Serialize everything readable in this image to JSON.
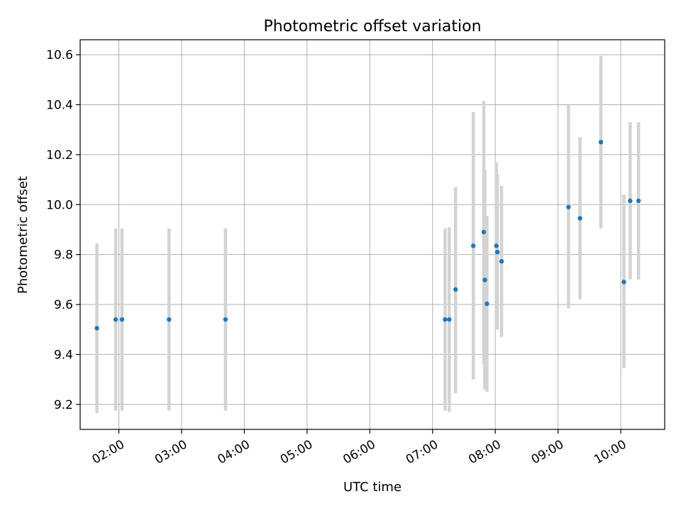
{
  "chart_data": {
    "type": "scatter",
    "title": "Photometric offset variation",
    "xlabel": "UTC time",
    "ylabel": "Photometric offset",
    "x_tick_labels": [
      "02:00",
      "03:00",
      "04:00",
      "05:00",
      "06:00",
      "07:00",
      "08:00",
      "09:00",
      "10:00"
    ],
    "y_tick_labels": [
      "9.2",
      "9.4",
      "9.6",
      "9.8",
      "10.0",
      "10.2",
      "10.4",
      "10.6"
    ],
    "xlim": [
      "01:23",
      "10:42"
    ],
    "ylim": [
      9.1,
      10.66
    ],
    "grid": true,
    "colors": {
      "point": "#1f77b4",
      "errorbar": "#d3d3d3",
      "grid": "#b0b0b0"
    },
    "points": [
      {
        "x": "01:39",
        "y": 9.505,
        "ylow": 9.165,
        "yhigh": 9.845
      },
      {
        "x": "01:57",
        "y": 9.54,
        "ylow": 9.175,
        "yhigh": 9.905
      },
      {
        "x": "02:03",
        "y": 9.54,
        "ylow": 9.175,
        "yhigh": 9.905
      },
      {
        "x": "02:48",
        "y": 9.54,
        "ylow": 9.175,
        "yhigh": 9.905
      },
      {
        "x": "03:42",
        "y": 9.54,
        "ylow": 9.175,
        "yhigh": 9.905
      },
      {
        "x": "07:12",
        "y": 9.54,
        "ylow": 9.175,
        "yhigh": 9.905
      },
      {
        "x": "07:16",
        "y": 9.54,
        "ylow": 9.17,
        "yhigh": 9.91
      },
      {
        "x": "07:22",
        "y": 9.66,
        "ylow": 9.245,
        "yhigh": 10.07
      },
      {
        "x": "07:39",
        "y": 9.835,
        "ylow": 9.3,
        "yhigh": 10.37
      },
      {
        "x": "07:49",
        "y": 9.89,
        "ylow": 9.36,
        "yhigh": 10.415
      },
      {
        "x": "07:50",
        "y": 9.698,
        "ylow": 9.26,
        "yhigh": 10.14
      },
      {
        "x": "07:52",
        "y": 9.603,
        "ylow": 9.25,
        "yhigh": 9.955
      },
      {
        "x": "08:01",
        "y": 9.835,
        "ylow": 9.5,
        "yhigh": 10.17
      },
      {
        "x": "08:02",
        "y": 9.81,
        "ylow": 9.5,
        "yhigh": 10.12
      },
      {
        "x": "08:06",
        "y": 9.773,
        "ylow": 9.47,
        "yhigh": 10.075
      },
      {
        "x": "09:10",
        "y": 9.99,
        "ylow": 9.585,
        "yhigh": 10.4
      },
      {
        "x": "09:21",
        "y": 9.945,
        "ylow": 9.62,
        "yhigh": 10.27
      },
      {
        "x": "09:41",
        "y": 10.25,
        "ylow": 9.905,
        "yhigh": 10.595
      },
      {
        "x": "10:03",
        "y": 9.69,
        "ylow": 9.345,
        "yhigh": 10.04
      },
      {
        "x": "10:09",
        "y": 10.015,
        "ylow": 9.7,
        "yhigh": 10.33
      },
      {
        "x": "10:17",
        "y": 10.015,
        "ylow": 9.7,
        "yhigh": 10.33
      }
    ]
  }
}
